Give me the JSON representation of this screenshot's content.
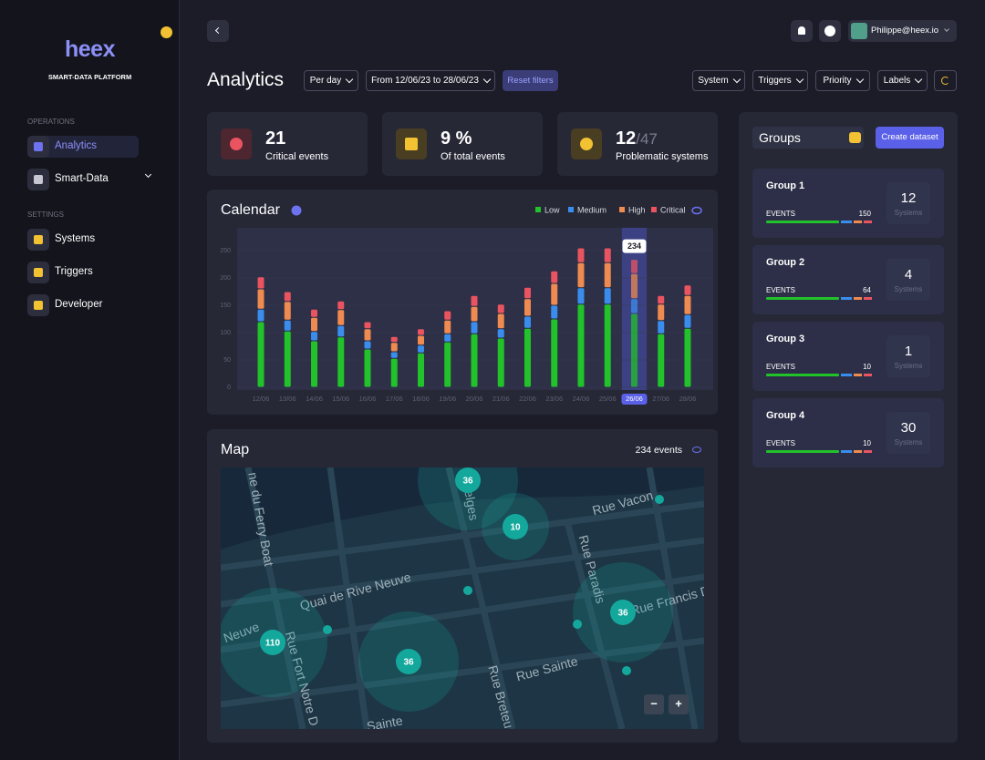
{
  "sidebar": {
    "logo": "heex",
    "tagline": "SMART-DATA PLATFORM",
    "sections": [
      {
        "title": "OPERATIONS",
        "items": [
          "Analytics",
          "Smart-Data"
        ]
      },
      {
        "title": "SETTINGS",
        "items": [
          "Systems",
          "Triggers",
          "Developer"
        ]
      }
    ]
  },
  "topbar": {
    "user": "Philippe@heex.io"
  },
  "header": {
    "title": "Analytics",
    "filters": [
      "Per day",
      "From 12/06/23 to 28/06/23"
    ],
    "reset": "Reset filters",
    "dropdowns": [
      "System",
      "Triggers",
      "Priority",
      "Labels"
    ]
  },
  "stats": [
    {
      "value": "21",
      "label": "Critical events"
    },
    {
      "value": "9 %",
      "label": "Of total events"
    },
    {
      "value": "12",
      "suffix": "/47",
      "label": "Problematic systems"
    }
  ],
  "chart_data": {
    "type": "bar",
    "stacked": true,
    "title": "Calendar",
    "categories": [
      "12/06",
      "13/06",
      "14/06",
      "15/06",
      "16/06",
      "17/06",
      "18/06",
      "19/06",
      "20/06",
      "21/06",
      "22/06",
      "23/06",
      "24/06",
      "25/06",
      "26/06",
      "27/06",
      "28/06"
    ],
    "series": [
      {
        "name": "Low",
        "color": "#21c22a",
        "values": [
          120,
          103,
          85,
          92,
          70,
          53,
          63,
          83,
          98,
          90,
          108,
          125,
          152,
          152,
          135,
          98,
          108
        ]
      },
      {
        "name": "Medium",
        "color": "#3a8dec",
        "values": [
          23,
          20,
          17,
          21,
          15,
          12,
          14,
          15,
          22,
          17,
          22,
          25,
          30,
          30,
          27,
          24,
          25
        ]
      },
      {
        "name": "High",
        "color": "#ef8a50",
        "values": [
          37,
          34,
          26,
          29,
          22,
          17,
          18,
          25,
          28,
          28,
          32,
          40,
          46,
          46,
          46,
          30,
          35
        ]
      },
      {
        "name": "Critical",
        "color": "#ea5460",
        "values": [
          22,
          18,
          15,
          16,
          13,
          11,
          12,
          17,
          20,
          17,
          21,
          23,
          27,
          27,
          26,
          16,
          19
        ]
      }
    ],
    "ylim": [
      0,
      290
    ],
    "yticks": [
      0,
      50,
      100,
      150,
      200,
      250
    ],
    "grid": true,
    "highlight": "26/06",
    "tooltip": 234
  },
  "map": {
    "title": "Map",
    "count": "234 events",
    "streets": [
      "ne du Ferry Boat",
      "Belges",
      "Rue Vacon",
      "Rue Paradis",
      "Rue Francis D",
      "Quai de Rive Neuve",
      "Neuve",
      "Rue Fort Notre D",
      "Rue Sainte",
      "Rue Breteu",
      "Sainte"
    ],
    "clusters": [
      "36",
      "10",
      "36",
      "110",
      "36"
    ],
    "zoom": [
      "−",
      "+"
    ]
  },
  "groups": {
    "title": "Groups",
    "action": "Create dataset",
    "items": [
      {
        "name": "Group 1",
        "events_label": "EVENTS",
        "events": 150,
        "systems": 12,
        "systems_label": "Systems"
      },
      {
        "name": "Group 2",
        "events_label": "EVENTS",
        "events": 64,
        "systems": 4,
        "systems_label": "Systems"
      },
      {
        "name": "Group 3",
        "events_label": "EVENTS",
        "events": 10,
        "systems": 1,
        "systems_label": "Systems"
      },
      {
        "name": "Group 4",
        "events_label": "EVENTS",
        "events": 10,
        "systems": 30,
        "systems_label": "Systems"
      }
    ]
  }
}
